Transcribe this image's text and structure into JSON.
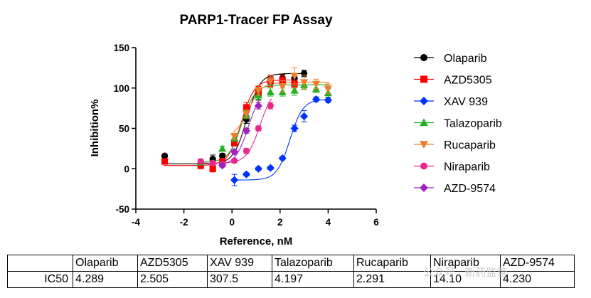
{
  "chart_data": {
    "type": "scatter",
    "title": "PARP1-Tracer FP Assay",
    "xlabel": "Reference, nM",
    "ylabel": "Inhibition%",
    "xlim": [
      -4,
      6
    ],
    "ylim": [
      -50,
      150
    ],
    "xticks": [
      -4,
      -2,
      0,
      2,
      4,
      6
    ],
    "yticks": [
      -50,
      0,
      50,
      100,
      150
    ],
    "grid": false,
    "legend_position": "right",
    "series": [
      {
        "name": "Olaparib",
        "color": "#000000",
        "marker": "circle",
        "ic50": "4.289",
        "x": [
          -2.8,
          -1.3,
          -0.8,
          -0.4,
          0.1,
          0.6,
          1.1,
          1.6,
          2.1,
          2.6,
          3.0
        ],
        "y": [
          16,
          6,
          12,
          16,
          33,
          61,
          91,
          109,
          112,
          112,
          118
        ],
        "err": [
          2,
          5,
          5,
          3,
          4,
          5,
          6,
          5,
          5,
          6,
          4
        ]
      },
      {
        "name": "AZD5305",
        "color": "#ff0000",
        "marker": "square",
        "ic50": "2.505",
        "x": [
          -2.8,
          -1.3,
          -0.8,
          -0.4,
          0.1,
          0.6,
          1.1,
          1.6,
          2.1,
          2.6
        ],
        "y": [
          9,
          4,
          0,
          9,
          32,
          76,
          96,
          109,
          110,
          105
        ],
        "err": [
          2,
          4,
          4,
          4,
          4,
          6,
          6,
          7,
          6,
          5
        ]
      },
      {
        "name": "XAV 939",
        "color": "#0033ff",
        "marker": "diamond",
        "ic50": "307.5",
        "x": [
          0.1,
          0.6,
          1.1,
          1.6,
          2.1,
          2.6,
          3.0,
          3.5,
          4.0
        ],
        "y": [
          -14,
          -7,
          0,
          1,
          13,
          50,
          65,
          86,
          85
        ],
        "err": [
          7,
          2,
          2,
          2,
          2,
          4,
          7,
          3,
          3
        ]
      },
      {
        "name": "Talazoparib",
        "color": "#22b022",
        "marker": "triangle-up",
        "ic50": "4.197",
        "x": [
          -1.3,
          -0.4,
          0.1,
          0.6,
          1.1,
          1.6,
          2.1,
          2.6,
          3.0,
          3.5,
          4.0
        ],
        "y": [
          8,
          25,
          38,
          67,
          91,
          95,
          95,
          97,
          104,
          99,
          94
        ],
        "err": [
          3,
          3,
          4,
          5,
          5,
          5,
          5,
          6,
          5,
          5,
          5
        ]
      },
      {
        "name": "Rucaparib",
        "color": "#f07c2c",
        "marker": "triangle-down",
        "ic50": "2.291",
        "x": [
          0.1,
          0.6,
          1.1,
          1.6,
          2.1,
          2.6,
          3.0,
          3.5,
          4.0
        ],
        "y": [
          40,
          68,
          97,
          108,
          102,
          115,
          107,
          105,
          99
        ],
        "err": [
          4,
          5,
          6,
          7,
          7,
          10,
          9,
          6,
          6
        ]
      },
      {
        "name": "Niraparib",
        "color": "#e8288c",
        "marker": "circle",
        "ic50": "14.10",
        "x": [
          -1.3,
          -0.8,
          -0.4,
          0.1,
          0.6,
          1.1,
          1.6
        ],
        "y": [
          9,
          7,
          6,
          10,
          22,
          50,
          78
        ],
        "err": [
          3,
          2,
          2,
          2,
          3,
          3,
          4
        ]
      },
      {
        "name": "AZD-9574",
        "color": "#a020c0",
        "marker": "diamond",
        "ic50": "4.230",
        "x": [
          -0.4,
          0.1,
          0.6,
          1.1
        ],
        "y": [
          4,
          21,
          47,
          78
        ],
        "err": [
          2,
          3,
          3,
          4
        ]
      }
    ]
  },
  "table": {
    "row_label": "IC50",
    "columns": [
      "Olaparib",
      "AZD5305",
      "XAV 939",
      "Talazoparib",
      "Rucaparib",
      "Niraparib",
      "AZD-9574"
    ],
    "values": [
      "4.289",
      "2.505",
      "307.5",
      "4.197",
      "2.291",
      "14.10",
      "4.230"
    ]
  },
  "watermark": "公众号 · 新药监管"
}
